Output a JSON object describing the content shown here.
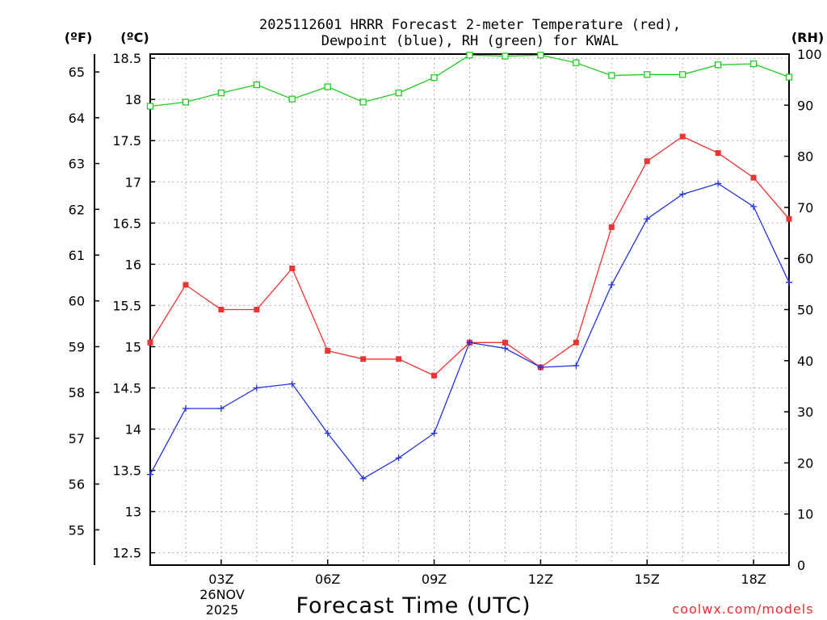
{
  "chart_data": {
    "type": "line",
    "title_line1": "2025112601 HRRR Forecast 2-meter Temperature (red),",
    "title_line2": "Dewpoint (blue), RH (green) for KWAL",
    "xlabel": "Forecast Time (UTC)",
    "date_line1": "26NOV",
    "date_line2": "2025",
    "watermark": "coolwx.com/models",
    "x_hours": [
      1,
      2,
      3,
      4,
      5,
      6,
      7,
      8,
      9,
      10,
      11,
      12,
      13,
      14,
      15,
      16,
      17,
      18,
      19
    ],
    "xlim": [
      1,
      19
    ],
    "x_ticks": [
      {
        "hour": 3,
        "label": "03Z"
      },
      {
        "hour": 6,
        "label": "06Z"
      },
      {
        "hour": 9,
        "label": "09Z"
      },
      {
        "hour": 12,
        "label": "12Z"
      },
      {
        "hour": 15,
        "label": "15Z"
      },
      {
        "hour": 18,
        "label": "18Z"
      }
    ],
    "axes": {
      "celsius": {
        "label": "(ºC)",
        "ylim": [
          12.35,
          18.55
        ],
        "ticks": [
          "12.5",
          "13",
          "13.5",
          "14",
          "14.5",
          "15",
          "15.5",
          "16",
          "16.5",
          "17",
          "17.5",
          "18",
          "18.5"
        ]
      },
      "fahrenheit": {
        "label": "(ºF)",
        "ticks": [
          "55",
          "56",
          "57",
          "58",
          "59",
          "60",
          "61",
          "62",
          "63",
          "64",
          "65"
        ]
      },
      "rh": {
        "label": "(RH)",
        "ylim": [
          0,
          100
        ],
        "ticks": [
          "0",
          "10",
          "20",
          "30",
          "40",
          "50",
          "60",
          "70",
          "80",
          "90",
          "100"
        ]
      }
    },
    "series": [
      {
        "name": "Temperature",
        "unit": "C",
        "color": "#ee3333",
        "marker": "filled-square",
        "values": [
          15.05,
          15.75,
          15.45,
          15.45,
          15.95,
          14.95,
          14.85,
          14.85,
          14.65,
          15.05,
          15.05,
          14.75,
          15.05,
          16.45,
          17.25,
          17.55,
          17.35,
          17.05,
          16.55
        ]
      },
      {
        "name": "Dewpoint",
        "unit": "C",
        "color": "#2233dd",
        "marker": "plus",
        "values": [
          13.45,
          14.25,
          14.25,
          14.5,
          14.55,
          13.95,
          13.4,
          13.65,
          13.95,
          15.05,
          14.98,
          14.75,
          14.77,
          15.75,
          16.55,
          16.85,
          16.98,
          16.7,
          15.78
        ]
      },
      {
        "name": "RH",
        "unit": "%",
        "color": "#22cc22",
        "marker": "open-square",
        "values": [
          89.8,
          90.6,
          92.4,
          94,
          91.2,
          93.6,
          90.6,
          92.4,
          95.4,
          99.8,
          99.6,
          99.8,
          98.3,
          95.8,
          96,
          96,
          97.9,
          98.1,
          95.5
        ]
      }
    ]
  }
}
